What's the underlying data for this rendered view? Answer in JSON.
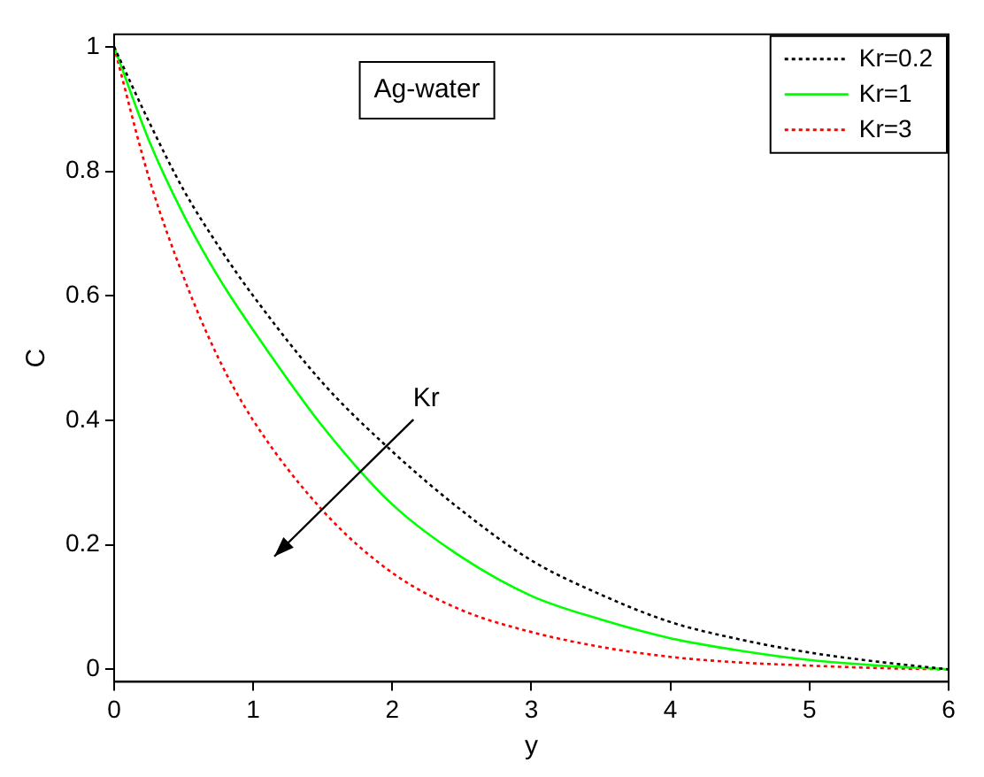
{
  "chart_data": {
    "type": "line",
    "xlabel": "y",
    "ylabel": "C",
    "x": [
      0,
      0.25,
      0.5,
      0.75,
      1,
      1.5,
      2,
      2.5,
      3,
      3.5,
      4,
      4.5,
      5,
      5.5,
      6
    ],
    "series": [
      {
        "name": "Kr=0.2",
        "color": "#000000",
        "line_style": "dotted",
        "values": [
          1,
          0.88,
          0.77,
          0.68,
          0.6,
          0.46,
          0.35,
          0.255,
          0.175,
          0.12,
          0.076,
          0.048,
          0.027,
          0.012,
          0
        ]
      },
      {
        "name": "Kr=1",
        "color": "#00ff00",
        "line_style": "solid",
        "values": [
          1,
          0.85,
          0.73,
          0.63,
          0.545,
          0.39,
          0.265,
          0.18,
          0.118,
          0.08,
          0.05,
          0.03,
          0.015,
          0.006,
          0
        ]
      },
      {
        "name": "Kr=3",
        "color": "#ff0000",
        "line_style": "dotted",
        "values": [
          1,
          0.79,
          0.63,
          0.5,
          0.4,
          0.255,
          0.155,
          0.095,
          0.06,
          0.036,
          0.02,
          0.011,
          0.006,
          0.002,
          0
        ]
      }
    ],
    "xlim": [
      0,
      6
    ],
    "xticks": [
      0,
      1,
      2,
      3,
      4,
      5,
      6
    ],
    "ylim": [
      -0.02,
      1.02
    ],
    "yticks": [
      0,
      0.2,
      0.4,
      0.6,
      0.8,
      1
    ],
    "grid": false,
    "legend": "top right",
    "marker": "none",
    "annotations": [
      "Ag-water",
      "Kr"
    ]
  }
}
